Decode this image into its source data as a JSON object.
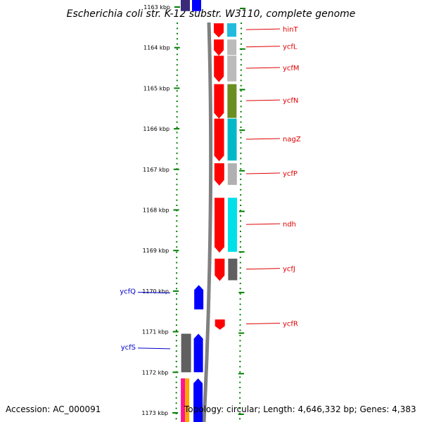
{
  "title": "Escherichia coli str. K-12 substr. W3110, complete genome",
  "footer": {
    "accession": "Accession: AC_000091",
    "topology": "Topology: circular; Length: 4,646,332 bp; Genes: 4,383"
  },
  "colors": {
    "forward_gene": "#ff0000",
    "reverse_gene": "#0000ff",
    "backbone": "#808080",
    "tick": "#008000",
    "label_forward": "#e00000",
    "label_reverse": "#0000cc"
  },
  "axis": {
    "unit": "kbp",
    "range_kbp": [
      1163,
      1173
    ],
    "ticks": [
      {
        "value": 1163,
        "label": "1163 kbp"
      },
      {
        "value": 1164,
        "label": "1164 kbp"
      },
      {
        "value": 1165,
        "label": "1165 kbp"
      },
      {
        "value": 1166,
        "label": "1166 kbp"
      },
      {
        "value": 1167,
        "label": "1167 kbp"
      },
      {
        "value": 1168,
        "label": "1168 kbp"
      },
      {
        "value": 1169,
        "label": "1169 kbp"
      },
      {
        "value": 1170,
        "label": "1170 kbp"
      },
      {
        "value": 1171,
        "label": "1171 kbp"
      },
      {
        "value": 1172,
        "label": "1172 kbp"
      },
      {
        "value": 1173,
        "label": "1173 kbp"
      }
    ]
  },
  "genes_forward": [
    {
      "name": "hinT",
      "start_kbp": 1163.4,
      "end_kbp": 1163.75,
      "cog_color": "#22bbdd"
    },
    {
      "name": "ycfL",
      "start_kbp": 1163.8,
      "end_kbp": 1164.2,
      "cog_color": "#bbbbbb"
    },
    {
      "name": "ycfM",
      "start_kbp": 1164.2,
      "end_kbp": 1164.85,
      "cog_color": "#bbbbbb"
    },
    {
      "name": "ycfN",
      "start_kbp": 1164.9,
      "end_kbp": 1165.75,
      "cog_color": "#6b8e23"
    },
    {
      "name": "nagZ",
      "start_kbp": 1165.75,
      "end_kbp": 1166.8,
      "cog_color": "#00b8c8"
    },
    {
      "name": "ycfP",
      "start_kbp": 1166.85,
      "end_kbp": 1167.4,
      "cog_color": "#b0b0b0"
    },
    {
      "name": "ndh",
      "start_kbp": 1167.7,
      "end_kbp": 1169.05,
      "cog_color": "#00e0e8"
    },
    {
      "name": "ycfJ",
      "start_kbp": 1169.2,
      "end_kbp": 1169.75,
      "cog_color": "#606060"
    },
    {
      "name": "ycfR",
      "start_kbp": 1170.7,
      "end_kbp": 1170.95,
      "cog_color": ""
    }
  ],
  "genes_reverse": [
    {
      "name": "ycfQ",
      "start_kbp": 1169.85,
      "end_kbp": 1170.45,
      "cog_color": ""
    },
    {
      "name": "ycfS",
      "start_kbp": 1171.05,
      "end_kbp": 1172.0,
      "cog_color": "#606060"
    },
    {
      "name": "",
      "start_kbp": 1172.15,
      "end_kbp": 1173.3,
      "cog_color": "#ff1493"
    },
    {
      "name": "",
      "start_kbp": 1162.8,
      "end_kbp": 1163.1,
      "cog_color": "#3a2a7a"
    }
  ]
}
